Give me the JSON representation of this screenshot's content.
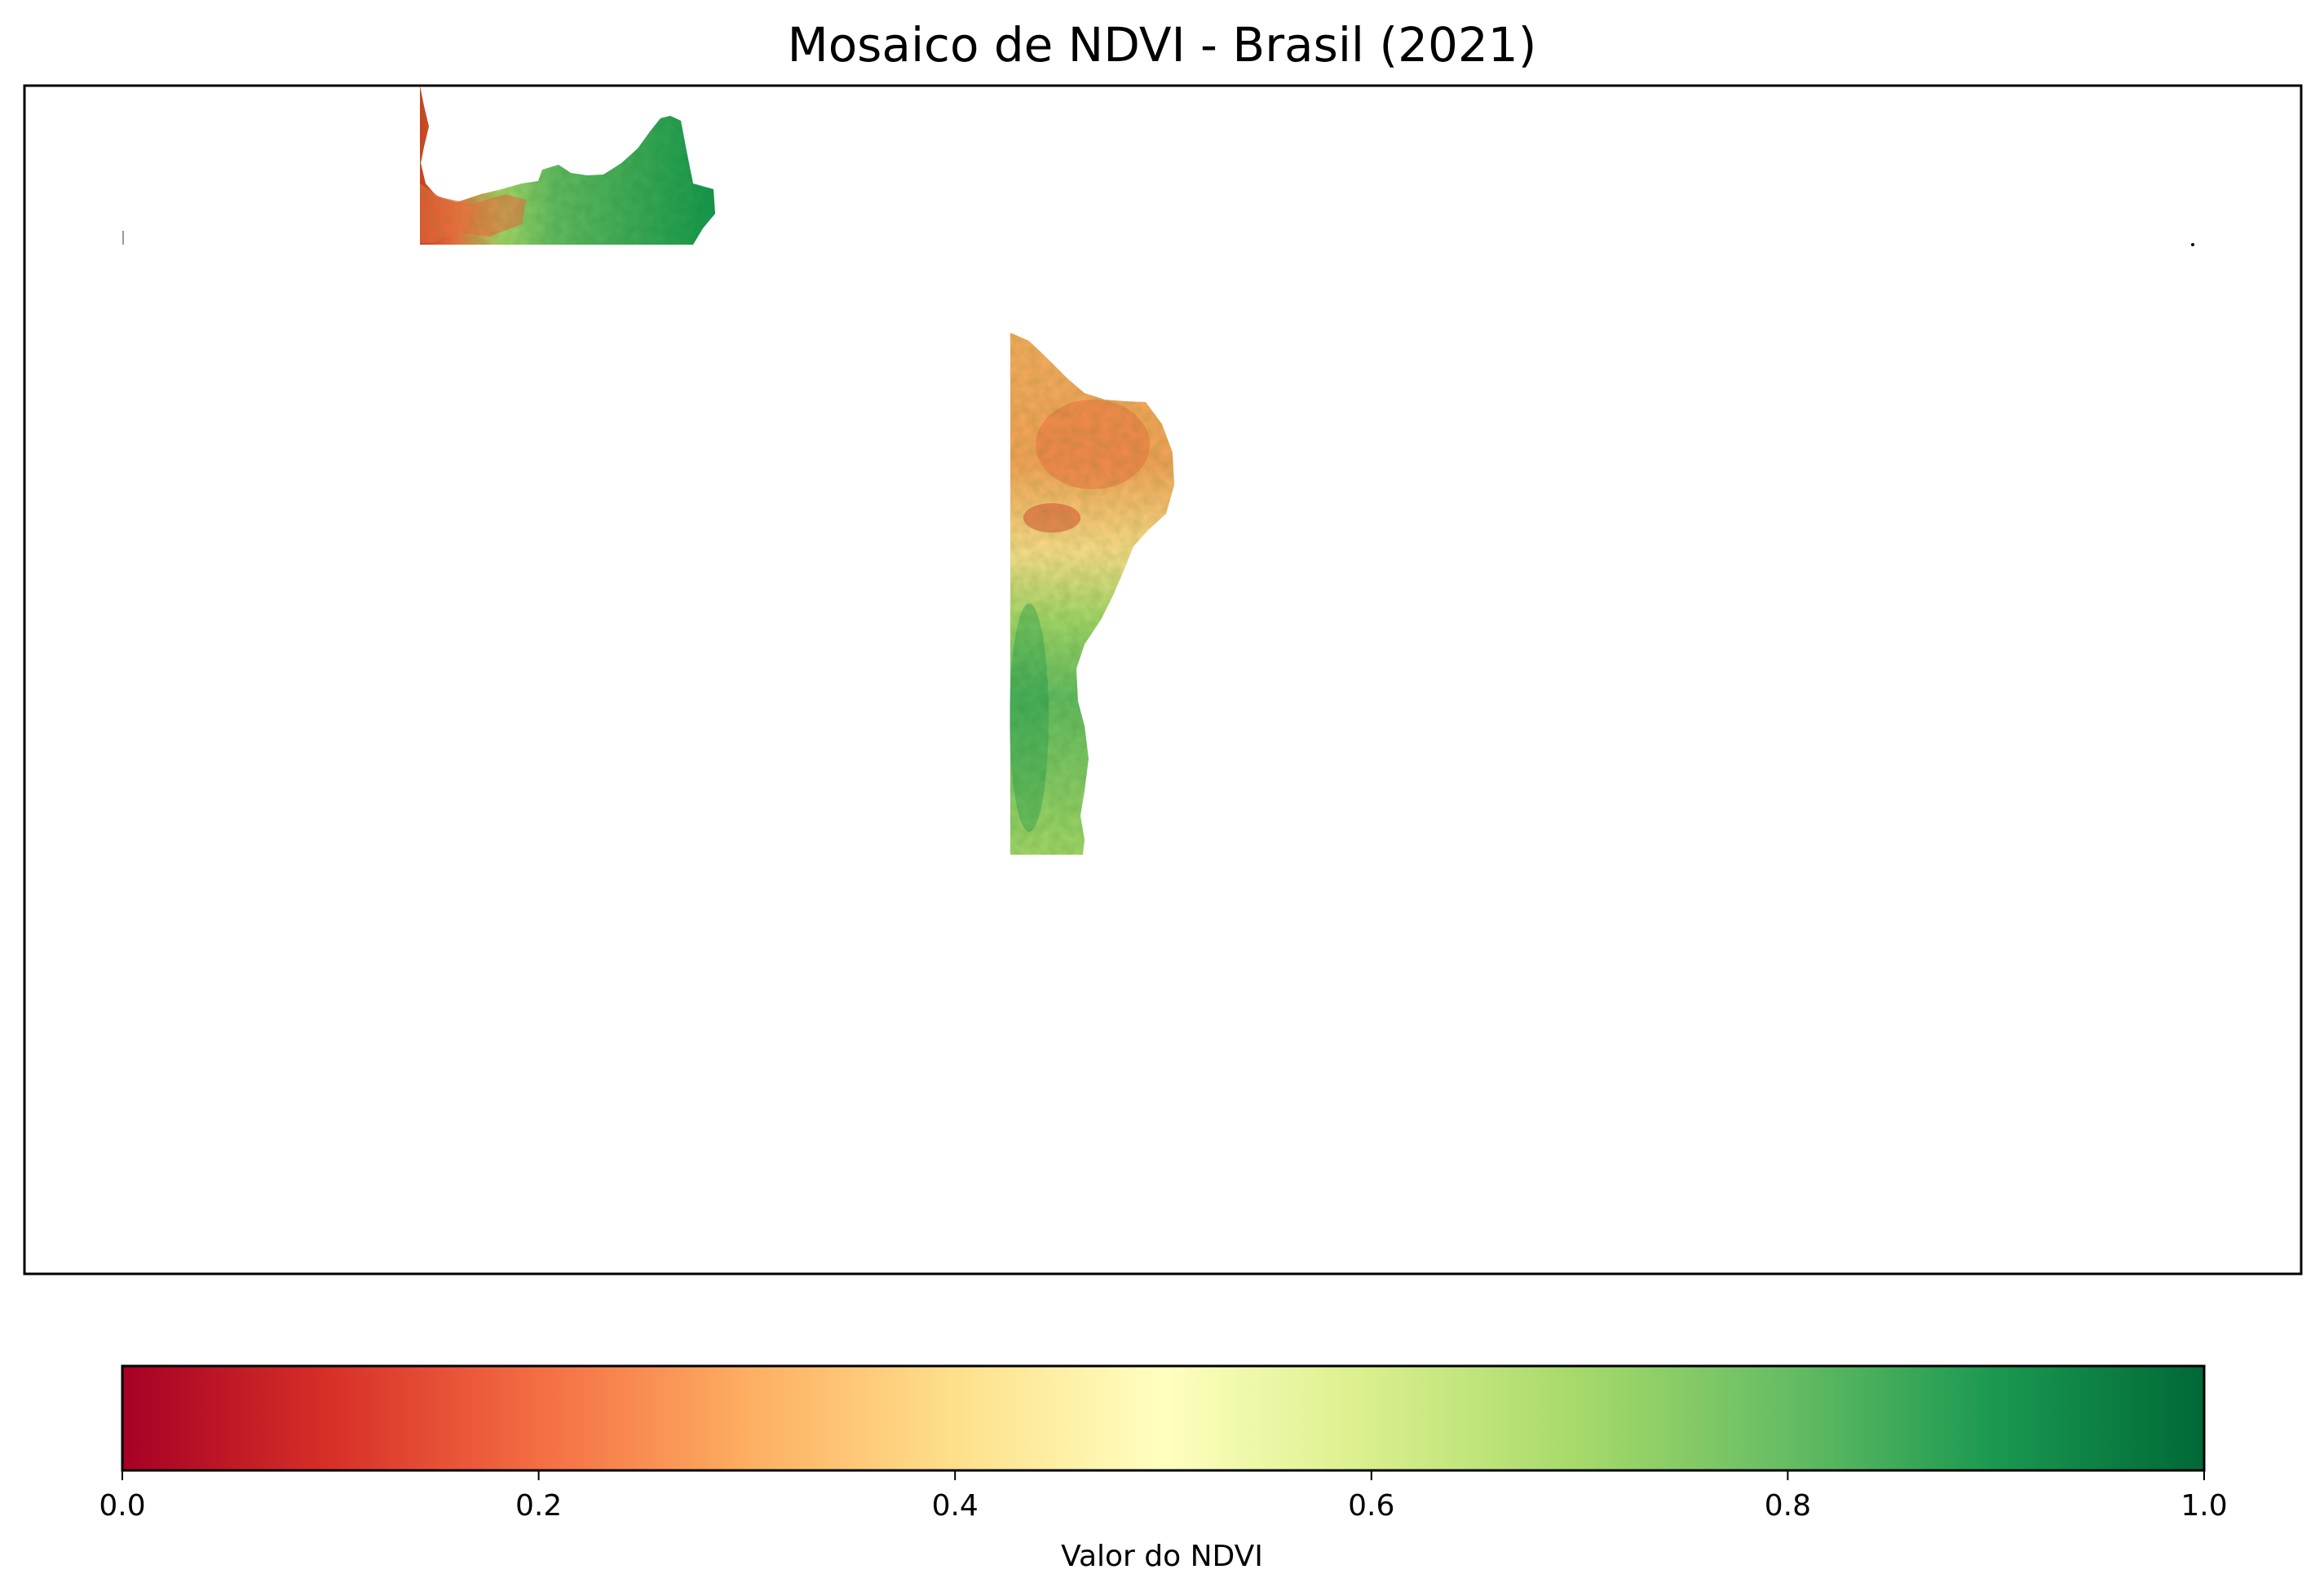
{
  "chart_data": {
    "type": "heatmap",
    "title": "Mosaico de NDVI - Brasil (2021)",
    "colormap": "RdYlGn",
    "colormap_stops": [
      "#a50026",
      "#d73027",
      "#f46d43",
      "#fdae61",
      "#fee08b",
      "#ffffbf",
      "#d9ef8b",
      "#a6d96a",
      "#66bd63",
      "#1a9850",
      "#006837"
    ],
    "colorbar": {
      "label": "Valor do NDVI",
      "range": [
        0.0,
        1.0
      ],
      "ticks": [
        "0.0",
        "0.2",
        "0.4",
        "0.6",
        "0.8",
        "1.0"
      ],
      "orientation": "horizontal"
    },
    "axes_ticks_visible": false,
    "regions": [
      {
        "name": "northern tile",
        "dominant_ndvi": 0.75,
        "west_edge_ndvi": 0.2
      },
      {
        "name": "northeast coast tile",
        "north_ndvi": 0.3,
        "south_ndvi": 0.75
      }
    ]
  }
}
